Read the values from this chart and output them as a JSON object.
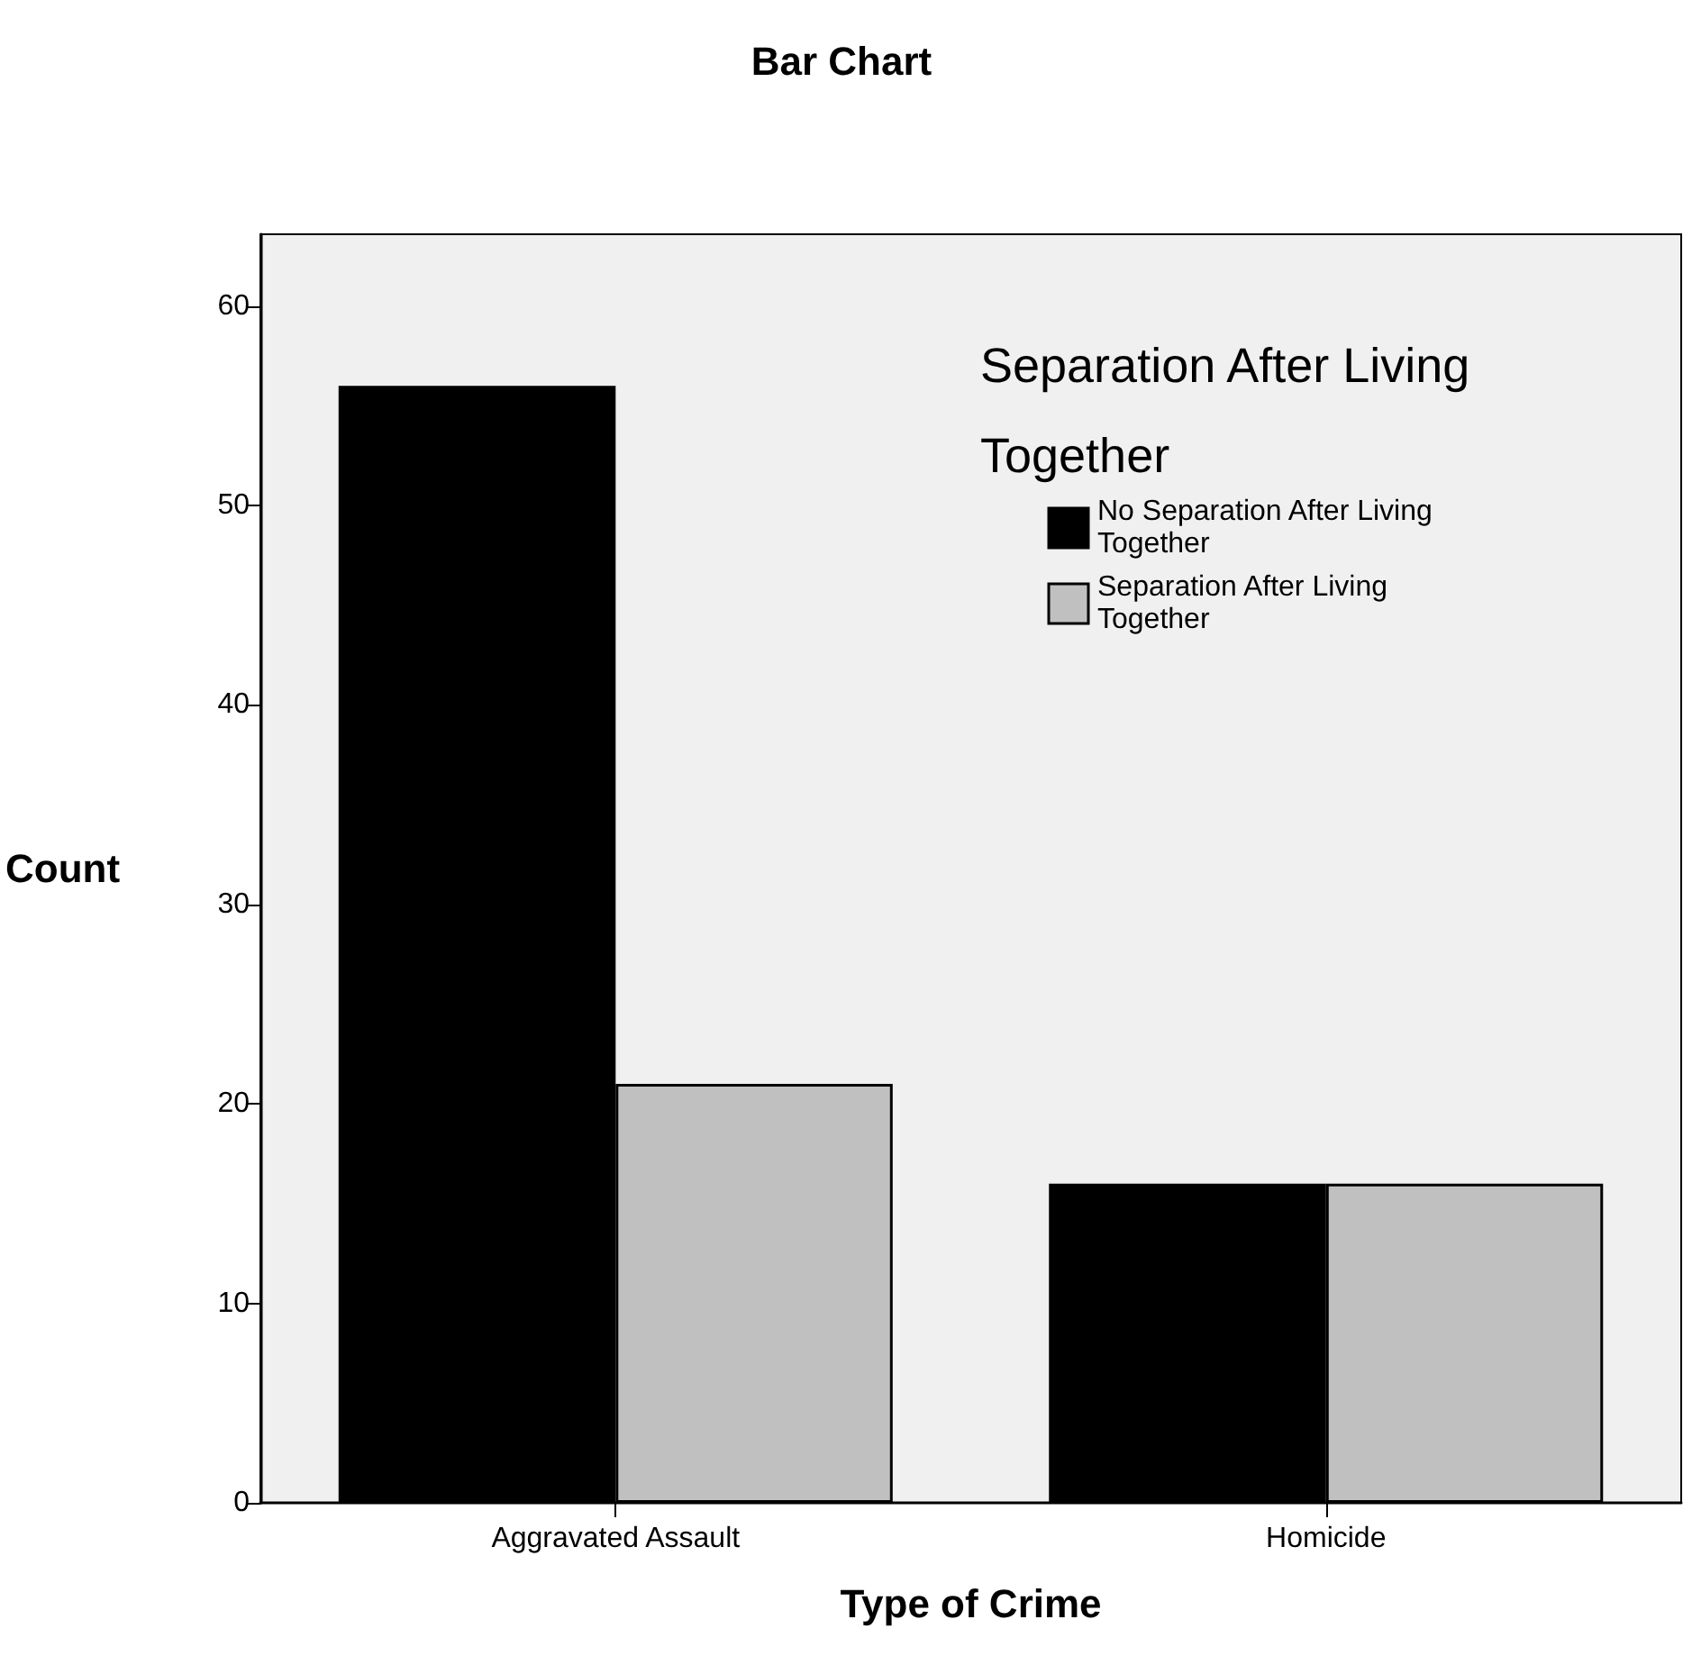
{
  "chart_data": {
    "type": "bar",
    "title": "Bar Chart",
    "xlabel": "Type of Crime",
    "ylabel": "Count",
    "legend_title": "Separation After Living Together",
    "categories": [
      "Aggravated Assault",
      "Homicide"
    ],
    "series": [
      {
        "name": "No Separation After Living Together",
        "color": "#000000",
        "values": [
          56,
          16
        ]
      },
      {
        "name": "Separation After Living Together",
        "color": "#c0c0c0",
        "values": [
          21,
          16
        ]
      }
    ],
    "ylim": [
      0,
      63.6
    ],
    "yticks": [
      0,
      10,
      20,
      30,
      40,
      50,
      60
    ],
    "grid": false,
    "legend": "top right"
  }
}
